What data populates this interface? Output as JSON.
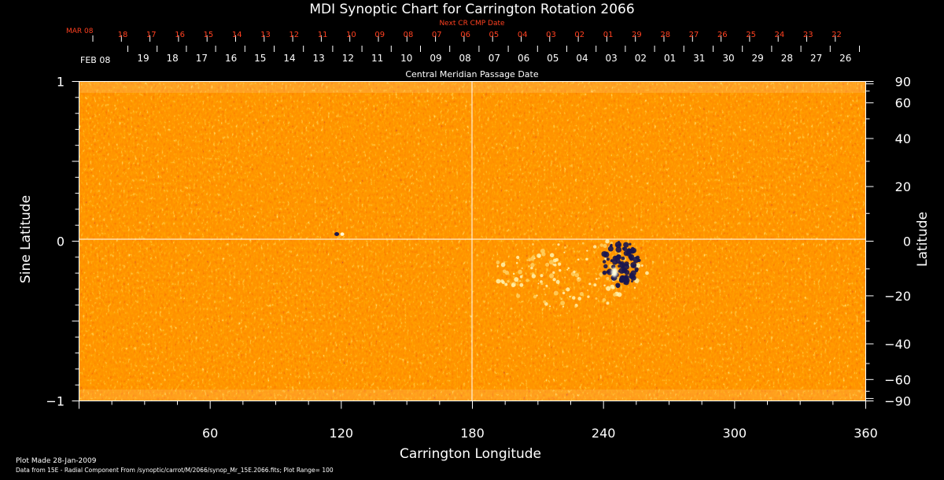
{
  "chart_data": {
    "type": "heatmap",
    "title": "MDI Synoptic Chart for Carrington Rotation 2066",
    "xlabel": "Carrington Longitude",
    "ylabel_left": "Sine Latitude",
    "ylabel_right": "Latitude",
    "xlim": [
      0,
      360
    ],
    "ylim": [
      -1,
      1
    ],
    "x_ticks": [
      60,
      120,
      180,
      240,
      300,
      360
    ],
    "y_left_ticks": [
      {
        "value": 1,
        "label": "1"
      },
      {
        "value": 0,
        "label": "0"
      },
      {
        "value": -1,
        "label": "−1"
      }
    ],
    "y_right_ticks": [
      90,
      60,
      40,
      20,
      0,
      -20,
      -40,
      -60,
      -90
    ],
    "next_cr_cmp": {
      "label": "Next CR CMP Date",
      "month_label": "MAR 08",
      "dates": [
        "18",
        "17",
        "16",
        "15",
        "14",
        "13",
        "12",
        "11",
        "10",
        "09",
        "08",
        "07",
        "06",
        "05",
        "04",
        "03",
        "02",
        "01",
        "29",
        "28",
        "27",
        "26",
        "25",
        "24",
        "23",
        "22"
      ]
    },
    "cmp": {
      "label": "Central Meridian Passage Date",
      "month_label": "FEB 08",
      "dates": [
        "19",
        "18",
        "17",
        "16",
        "15",
        "14",
        "13",
        "12",
        "11",
        "10",
        "09",
        "08",
        "07",
        "06",
        "05",
        "04",
        "03",
        "02",
        "01",
        "31",
        "30",
        "29",
        "28",
        "27",
        "26"
      ]
    },
    "color_scale": [
      "#1a1650",
      "#a01000",
      "#ff5a00",
      "#ffd060",
      "#ffffe0"
    ],
    "background_color": "#ff4a00",
    "crosshair": {
      "longitude": 180,
      "sine_latitude": 0
    },
    "active_region": {
      "longitude": 245,
      "sine_latitude": -0.17,
      "note": "bipolar region"
    },
    "footer": {
      "plot_made": "Plot Made 28-Jan-2009",
      "data_source": "Data from 15E - Radial Component From /synoptic/carrot/M/2066/synop_Mr_15E.2066.fits; Plot Range= 100"
    }
  }
}
